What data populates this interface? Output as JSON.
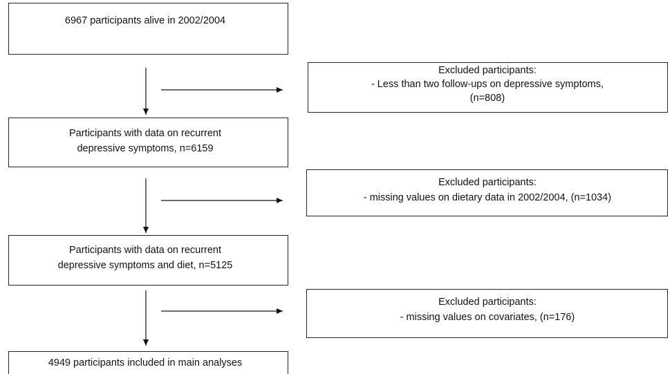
{
  "nodes": [
    {
      "lines": [
        "6967 participants alive in 2002/2004"
      ]
    },
    {
      "lines": [
        "Excluded participants:",
        "- Less than two follow-ups on depressive symptoms,",
        "(n=808)"
      ]
    },
    {
      "lines": [
        "Participants with data on recurrent",
        "depressive symptoms, n=6159"
      ]
    },
    {
      "lines": [
        "Excluded participants:",
        "- missing values on dietary data in 2002/2004, (n=1034)"
      ]
    },
    {
      "lines": [
        "Participants with data on recurrent",
        "depressive symptoms and diet, n=5125"
      ]
    },
    {
      "lines": [
        "Excluded participants:",
        "- missing values on covariates, (n=176)"
      ]
    },
    {
      "lines": [
        "4949 participants included in main analyses"
      ]
    }
  ]
}
